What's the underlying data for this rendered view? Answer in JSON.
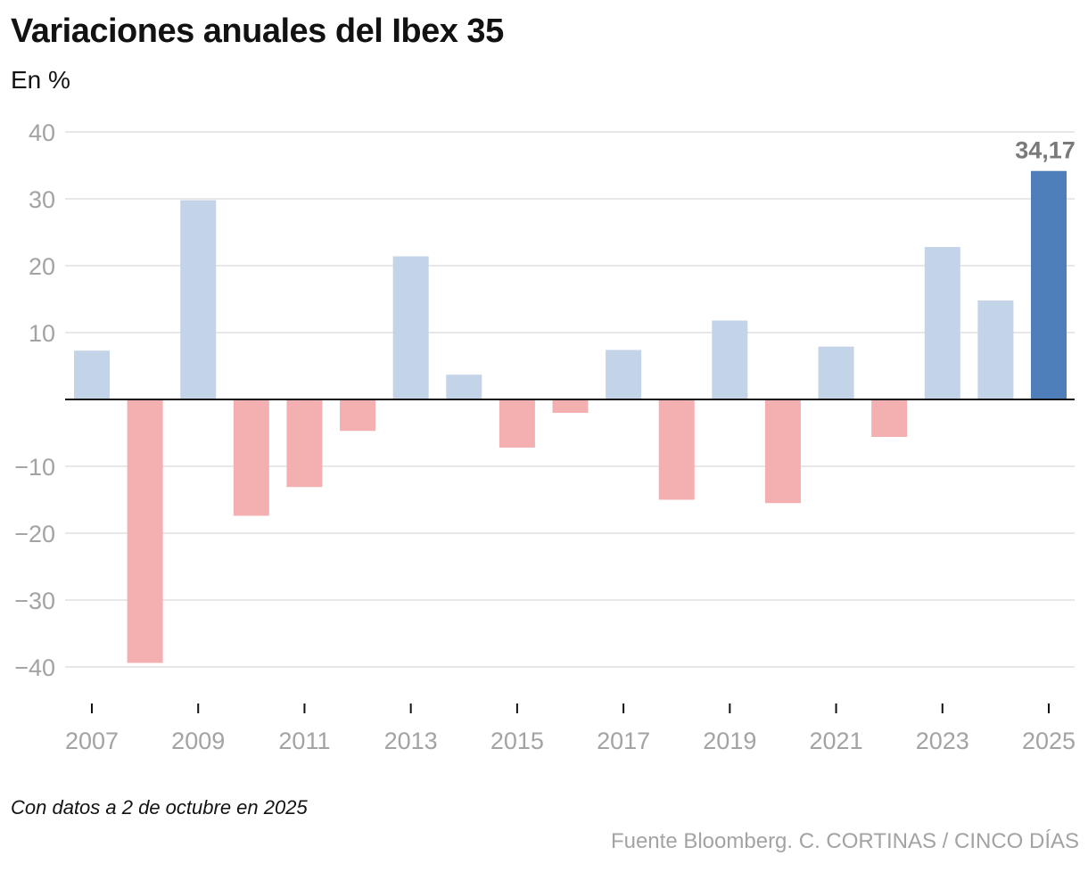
{
  "chart_data": {
    "type": "bar",
    "title": "Variaciones anuales del Ibex 35",
    "subtitle": "En %",
    "x": [
      2007,
      2008,
      2009,
      2010,
      2011,
      2012,
      2013,
      2014,
      2015,
      2016,
      2017,
      2018,
      2019,
      2020,
      2021,
      2022,
      2023,
      2024,
      2025
    ],
    "x_tick_labels": [
      "2007",
      "2009",
      "2011",
      "2013",
      "2015",
      "2017",
      "2019",
      "2021",
      "2023",
      "2025"
    ],
    "values": [
      7.3,
      -39.4,
      29.8,
      -17.4,
      -13.1,
      -4.7,
      21.4,
      3.7,
      -7.2,
      -2.0,
      7.4,
      -15.0,
      11.8,
      -15.5,
      7.9,
      -5.6,
      22.8,
      14.8,
      34.17
    ],
    "y_ticks": [
      40,
      30,
      20,
      10,
      0,
      -10,
      -20,
      -30,
      -40
    ],
    "y_tick_labels": [
      "40",
      "30",
      "20",
      "10",
      "",
      "−10",
      "−20",
      "−30",
      "−40"
    ],
    "ylim": [
      -40,
      40
    ],
    "grid": true,
    "highlight": {
      "x": 2025,
      "label": "34,17"
    },
    "colors": {
      "positive": "#c3d3e8",
      "negative": "#f4afb1",
      "highlight": "#4f7fba",
      "grid": "#e1e1e1",
      "zero_line": "#121212",
      "text_muted": "#a3a3a3"
    }
  },
  "note": "Con datos a 2 de octubre en 2025",
  "source": "Fuente Bloomberg. C. CORTINAS / CINCO DÍAS"
}
